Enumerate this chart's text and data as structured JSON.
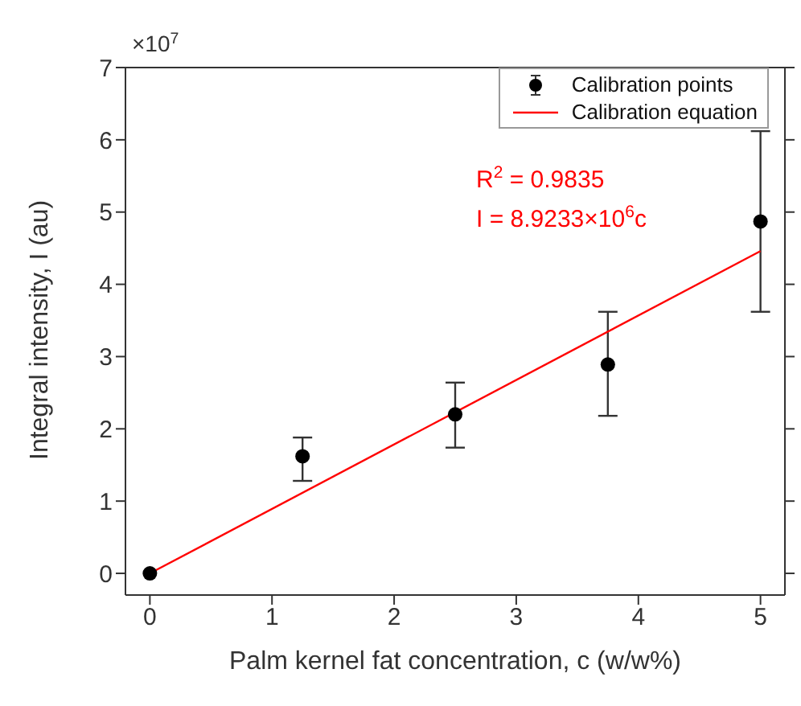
{
  "chart_data": {
    "type": "scatter",
    "xlabel": "Palm kernel fat concentration,  c (w/w%)",
    "ylabel": "Integral intensity,  I (au)",
    "xlim": [
      -0.2,
      5.2
    ],
    "xticks": [
      0,
      1,
      2,
      3,
      4,
      5
    ],
    "ylim": [
      -0.3,
      7
    ],
    "yticks": [
      0,
      1,
      2,
      3,
      4,
      5,
      6,
      7
    ],
    "series": [
      {
        "name": "Calibration points",
        "color": "#000000",
        "x": [
          0,
          1.25,
          2.5,
          3.75,
          5
        ],
        "values": [
          0,
          1.62,
          2.2,
          2.89,
          4.87
        ],
        "errors": [
          null,
          [
            1.28,
            1.88
          ],
          [
            1.74,
            2.64
          ],
          [
            2.18,
            3.62
          ],
          [
            3.62,
            6.12
          ]
        ],
        "marker": "circle"
      },
      {
        "name": "Calibration equation",
        "type": "line",
        "color": "#ff0000",
        "x": [
          0,
          5
        ],
        "values": [
          0,
          4.46
        ],
        "line_style": "solid",
        "marker": "none"
      }
    ],
    "annotations": [
      "×10$^{7}$",
      "R$^{2}$ = 0.9835",
      "I = 8.9233×10$^{6}$c"
    ],
    "legend": "top right"
  }
}
